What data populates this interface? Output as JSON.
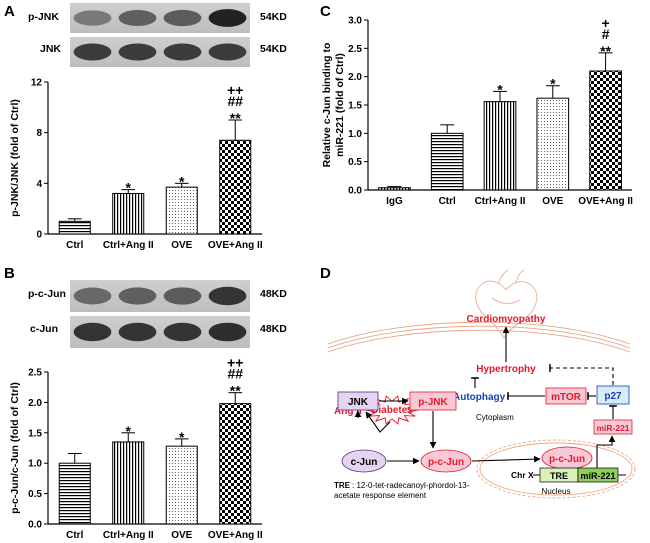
{
  "colors": {
    "red": "#e8192c",
    "blue": "#1a3fb5",
    "pink_fill": "#f6c9d6",
    "lavender": "#e3d4f0",
    "light_blue": "#d6ecf7",
    "green_tre": "#d9f0b8",
    "nucleus_orange": "#f0a87c"
  },
  "panelA": {
    "letter": "A",
    "blots": [
      {
        "label": "p-JNK",
        "size": "54KD",
        "intensities": [
          0.45,
          0.6,
          0.62,
          0.95
        ]
      },
      {
        "label": "JNK",
        "size": "54KD",
        "intensities": [
          0.8,
          0.8,
          0.8,
          0.8
        ]
      }
    ],
    "chart_data": {
      "type": "bar",
      "categories": [
        "Ctrl",
        "Ctrl+Ang II",
        "OVE",
        "OVE+Ang II"
      ],
      "values": [
        1.0,
        3.2,
        3.7,
        7.4
      ],
      "errors": [
        0.2,
        0.3,
        0.3,
        1.6
      ],
      "significance": [
        "",
        "*",
        "*",
        "++\n##\n**"
      ],
      "patterns": [
        "hstripe",
        "vstripe",
        "dots",
        "checker"
      ],
      "ylabel": "p-JNK/JNK (fold of Ctrl)",
      "ylim": [
        0,
        12
      ],
      "yticks": [
        "0",
        "4",
        "8",
        "12"
      ]
    }
  },
  "panelB": {
    "letter": "B",
    "blots": [
      {
        "label": "p-c-Jun",
        "size": "48KD",
        "intensities": [
          0.55,
          0.6,
          0.62,
          0.85
        ]
      },
      {
        "label": "c-Jun",
        "size": "48KD",
        "intensities": [
          0.85,
          0.85,
          0.85,
          0.88
        ]
      }
    ],
    "chart_data": {
      "type": "bar",
      "categories": [
        "Ctrl",
        "Ctrl+Ang II",
        "OVE",
        "OVE+Ang II"
      ],
      "values": [
        1.0,
        1.35,
        1.28,
        1.98
      ],
      "errors": [
        0.16,
        0.15,
        0.12,
        0.18
      ],
      "significance": [
        "",
        "*",
        "*",
        "++\n##\n**"
      ],
      "patterns": [
        "hstripe",
        "vstripe",
        "dots",
        "checker"
      ],
      "ylabel": "p-c-Jun/c-Jun (fold of Ctrl)",
      "ylim": [
        0,
        2.5
      ],
      "yticks": [
        "0.0",
        "0.5",
        "1.0",
        "1.5",
        "2.0",
        "2.5"
      ]
    }
  },
  "panelC": {
    "letter": "C",
    "chart_data": {
      "type": "bar",
      "categories": [
        "IgG",
        "Ctrl",
        "Ctrl+Ang II",
        "OVE",
        "OVE+Ang II"
      ],
      "values": [
        0.04,
        1.0,
        1.56,
        1.62,
        2.1
      ],
      "errors": [
        0.02,
        0.15,
        0.18,
        0.22,
        0.32
      ],
      "significance": [
        "",
        "",
        "*",
        "*",
        "+\n#\n**"
      ],
      "patterns": [
        "vstripe",
        "hstripe",
        "vstripe",
        "dots",
        "checker"
      ],
      "ylabel": [
        "Relative c-Jun binding to",
        "miR-221 (fold of Ctrl)"
      ],
      "ylim": [
        0,
        3.0
      ],
      "yticks": [
        "0.0",
        "0.5",
        "1.0",
        "1.5",
        "2.0",
        "2.5",
        "3.0"
      ]
    }
  },
  "panelD": {
    "letter": "D",
    "nodes": {
      "ang": "Ang II",
      "diabetes": "Diabetes",
      "cardiomyopathy": "Cardiomyopathy",
      "hypertrophy": "Hypertrophy",
      "autophagy": "Autophagy",
      "mtor": "mTOR",
      "p27": "p27",
      "jnk": "JNK",
      "pjnk": "p-JNK",
      "cytoplasm": "Cytoplasm",
      "mir221_box": "miR-221",
      "cjun": "c-Jun",
      "pcjun1": "p-c-Jun",
      "pcjun2": "p-c-Jun",
      "chrx": "Chr X",
      "tre": "TRE",
      "mir221_gene": "miR-221",
      "nucleus": "Nucleus"
    },
    "legend_key": "TRE",
    "legend_line1": ": 12-0-tet-radecanoyl-phordol-13-",
    "legend_line2": "acetate response element"
  }
}
